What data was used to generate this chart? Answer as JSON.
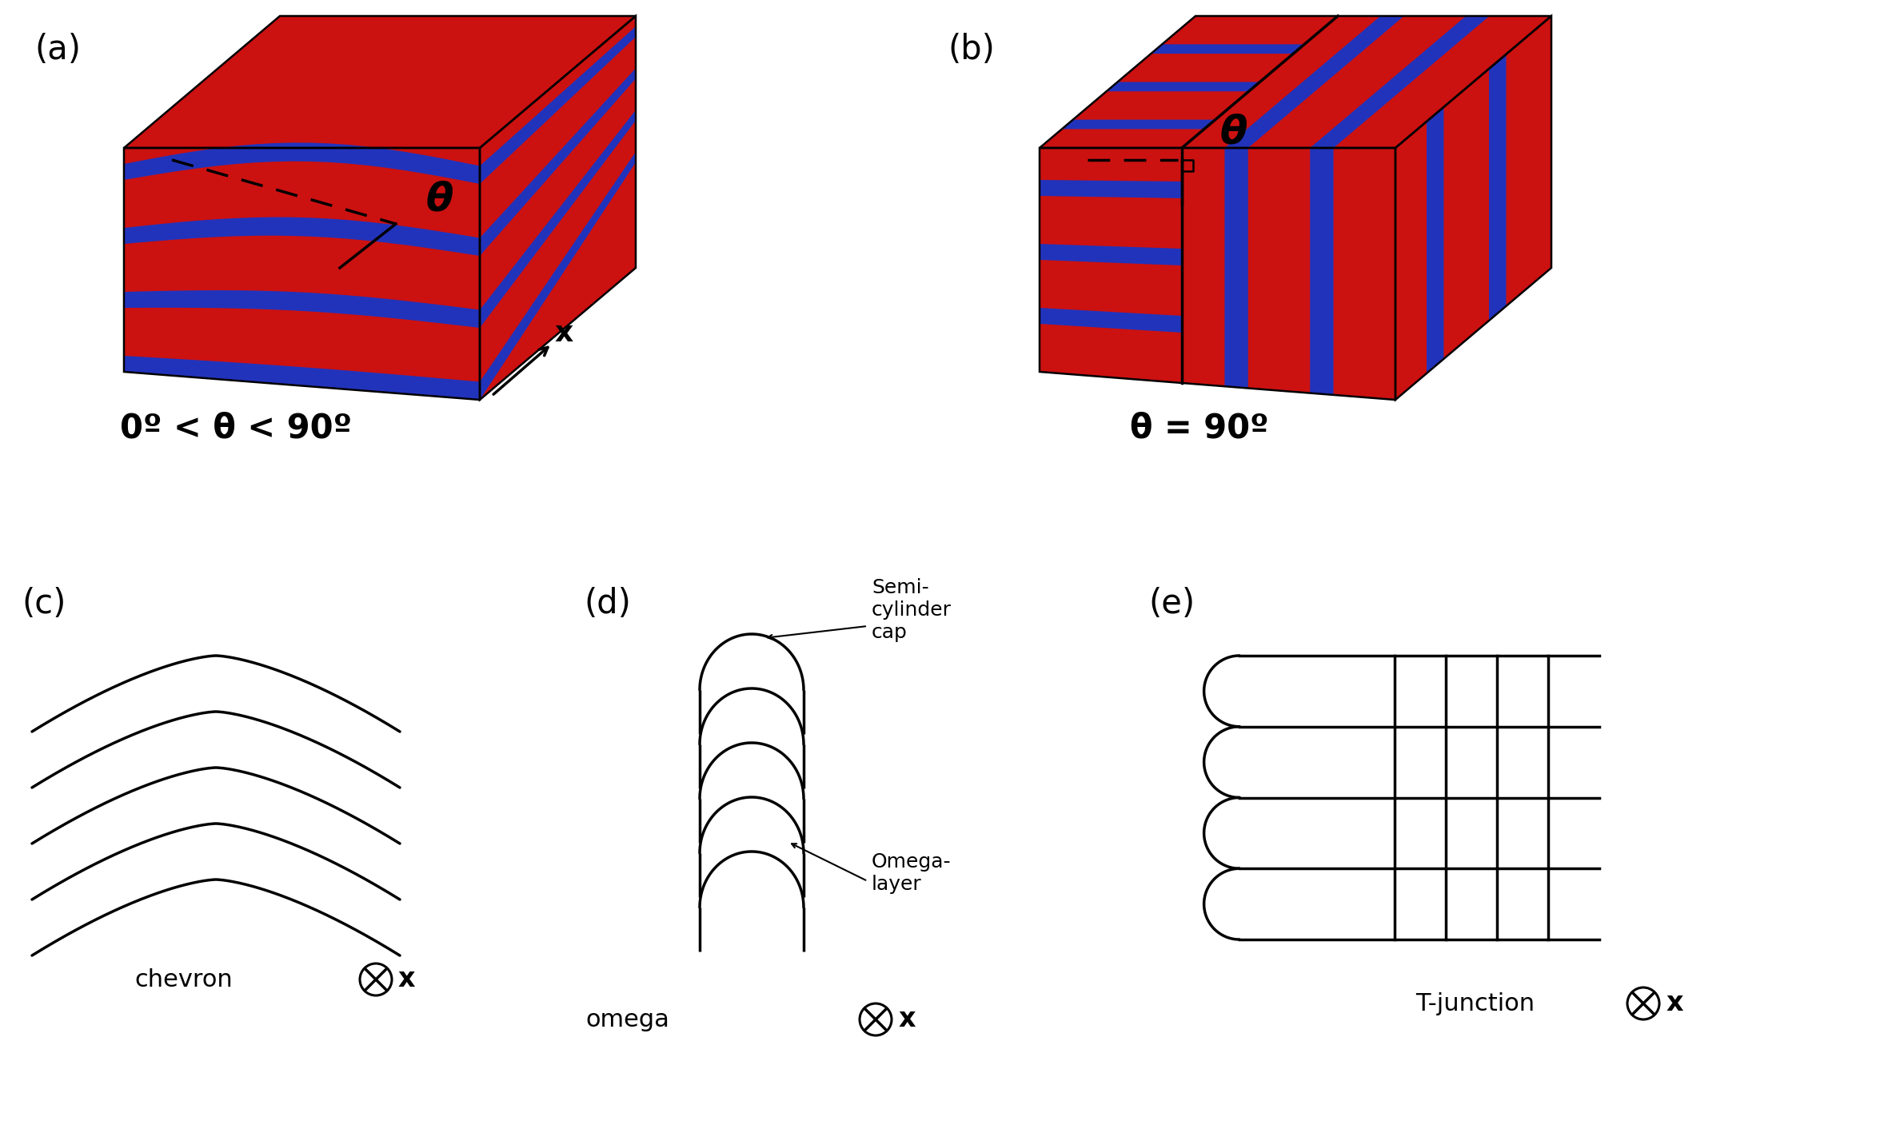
{
  "bg_color": "#ffffff",
  "red_color": "#cc1111",
  "blue_color": "#2233bb",
  "black_color": "#000000",
  "label_a": "(a)",
  "label_b": "(b)",
  "label_c": "(c)",
  "label_d": "(d)",
  "label_e": "(e)",
  "text_theta": "θ",
  "text_x": "x",
  "label_below_a": "0º < θ < 90º",
  "label_below_b": "θ = 90º",
  "label_chevron": "chevron",
  "label_omega": "omega",
  "label_tjunction": "T-junction",
  "label_semi": "Semi-\ncylinder\ncap",
  "label_omega_layer": "Omega-\nlayer",
  "lw_diagram": 2.8
}
